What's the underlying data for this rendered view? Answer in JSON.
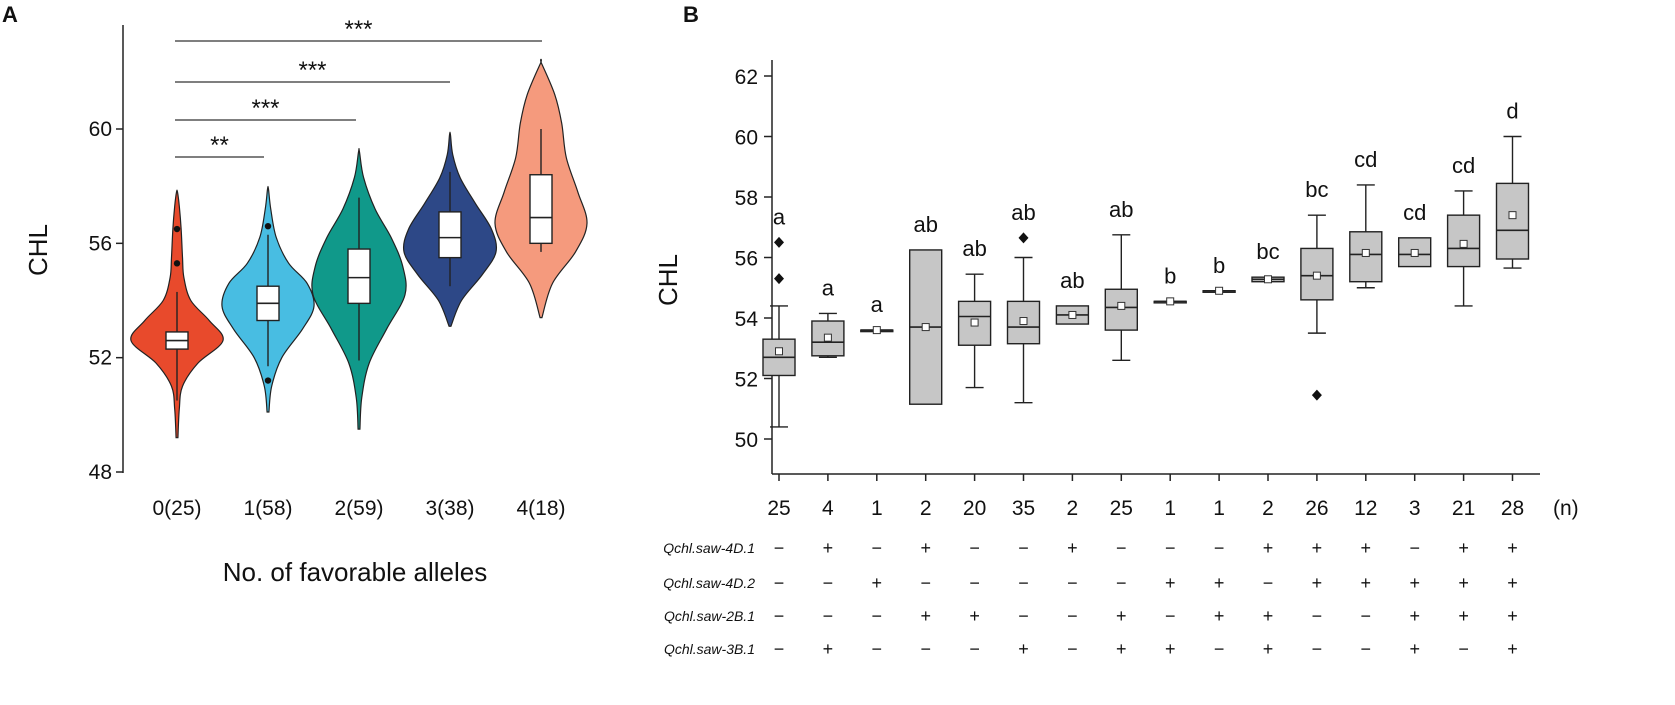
{
  "chart_data": [
    {
      "panel": "A",
      "type": "violin",
      "ylabel": "CHL",
      "xlabel": "No. of favorable alleles",
      "ylim": [
        47.5,
        64
      ],
      "yticks": [
        48,
        52,
        56,
        60
      ],
      "categories": [
        "0(25)",
        "1(58)",
        "2(59)",
        "3(38)",
        "4(18)"
      ],
      "colors": [
        "#e84a2c",
        "#48bde2",
        "#10998a",
        "#2d4887",
        "#f59a7d"
      ],
      "groups": [
        {
          "box": {
            "q1": 52.3,
            "median": 52.6,
            "q3": 52.9,
            "whisker_low": 50.5,
            "whisker_high": 54.3
          },
          "outliers": [
            55.3,
            56.5
          ],
          "violin": [
            [
              49.2,
              0.02
            ],
            [
              50.2,
              0.05
            ],
            [
              51.0,
              0.12
            ],
            [
              51.8,
              0.45
            ],
            [
              52.6,
              1.0
            ],
            [
              53.3,
              0.7
            ],
            [
              54.0,
              0.3
            ],
            [
              54.8,
              0.15
            ],
            [
              55.5,
              0.12
            ],
            [
              56.5,
              0.09
            ],
            [
              57.3,
              0.05
            ],
            [
              57.8,
              0.01
            ]
          ]
        },
        {
          "box": {
            "q1": 53.3,
            "median": 53.9,
            "q3": 54.5,
            "whisker_low": 51.7,
            "whisker_high": 56.3
          },
          "outliers": [
            51.2,
            56.6
          ],
          "violin": [
            [
              50.1,
              0.02
            ],
            [
              51.0,
              0.08
            ],
            [
              52.0,
              0.3
            ],
            [
              53.0,
              0.75
            ],
            [
              53.8,
              1.0
            ],
            [
              54.6,
              0.85
            ],
            [
              55.3,
              0.45
            ],
            [
              56.2,
              0.18
            ],
            [
              57.2,
              0.06
            ],
            [
              57.9,
              0.01
            ]
          ]
        },
        {
          "box": {
            "q1": 53.9,
            "median": 54.8,
            "q3": 55.8,
            "whisker_low": 51.9,
            "whisker_high": 57.6
          },
          "outliers": [],
          "violin": [
            [
              49.5,
              0.02
            ],
            [
              50.6,
              0.06
            ],
            [
              51.8,
              0.22
            ],
            [
              53.0,
              0.6
            ],
            [
              54.2,
              1.0
            ],
            [
              55.2,
              0.95
            ],
            [
              56.2,
              0.7
            ],
            [
              57.2,
              0.35
            ],
            [
              58.3,
              0.1
            ],
            [
              59.2,
              0.01
            ]
          ]
        },
        {
          "box": {
            "q1": 55.5,
            "median": 56.2,
            "q3": 57.1,
            "whisker_low": 54.5,
            "whisker_high": 58.5
          },
          "outliers": [],
          "violin": [
            [
              53.1,
              0.02
            ],
            [
              54.0,
              0.25
            ],
            [
              54.9,
              0.7
            ],
            [
              55.7,
              1.0
            ],
            [
              56.5,
              0.9
            ],
            [
              57.4,
              0.55
            ],
            [
              58.3,
              0.22
            ],
            [
              59.1,
              0.06
            ],
            [
              59.8,
              0.01
            ]
          ]
        },
        {
          "box": {
            "q1": 56.0,
            "median": 56.9,
            "q3": 58.4,
            "whisker_low": 55.7,
            "whisker_high": 60.0
          },
          "outliers": [],
          "violin": [
            [
              53.4,
              0.02
            ],
            [
              54.6,
              0.25
            ],
            [
              55.7,
              0.75
            ],
            [
              56.7,
              1.0
            ],
            [
              57.8,
              0.8
            ],
            [
              59.0,
              0.55
            ],
            [
              60.2,
              0.45
            ],
            [
              61.2,
              0.3
            ],
            [
              62.3,
              0.01
            ]
          ]
        }
      ],
      "significance": [
        {
          "from": 0,
          "to": 1,
          "label": "**"
        },
        {
          "from": 0,
          "to": 2,
          "label": "***"
        },
        {
          "from": 0,
          "to": 3,
          "label": "***"
        },
        {
          "from": 0,
          "to": 4,
          "label": "***"
        }
      ]
    },
    {
      "panel": "B",
      "type": "box",
      "ylabel": "CHL",
      "ylim": [
        49,
        62.3
      ],
      "yticks": [
        50,
        52,
        54,
        56,
        58,
        60,
        62
      ],
      "n_suffix": "(n)",
      "groups": [
        {
          "n": "25",
          "letter": "a",
          "q1": 52.1,
          "median": 52.7,
          "q3": 53.3,
          "whisker_low": 50.4,
          "whisker_high": 54.4,
          "mean": 52.9,
          "outliers": [
            55.3,
            56.5
          ]
        },
        {
          "n": "4",
          "letter": "a",
          "q1": 52.75,
          "median": 53.2,
          "q3": 53.9,
          "whisker_low": 52.7,
          "whisker_high": 54.15,
          "mean": 53.35,
          "outliers": []
        },
        {
          "n": "1",
          "letter": "a",
          "q1": 53.6,
          "median": 53.6,
          "q3": 53.6,
          "whisker_low": 53.6,
          "whisker_high": 53.6,
          "mean": 53.6,
          "outliers": []
        },
        {
          "n": "2",
          "letter": "ab",
          "q1": 51.15,
          "median": 53.7,
          "q3": 56.25,
          "whisker_low": 51.15,
          "whisker_high": 56.25,
          "mean": 53.7,
          "outliers": []
        },
        {
          "n": "20",
          "letter": "ab",
          "q1": 53.1,
          "median": 54.05,
          "q3": 54.55,
          "whisker_low": 51.7,
          "whisker_high": 55.45,
          "mean": 53.85,
          "outliers": []
        },
        {
          "n": "35",
          "letter": "ab",
          "q1": 53.15,
          "median": 53.7,
          "q3": 54.55,
          "whisker_low": 51.2,
          "whisker_high": 56.0,
          "mean": 53.9,
          "outliers": [
            56.65
          ]
        },
        {
          "n": "2",
          "letter": "ab",
          "q1": 53.8,
          "median": 54.1,
          "q3": 54.4,
          "whisker_low": 53.8,
          "whisker_high": 54.4,
          "mean": 54.1,
          "outliers": []
        },
        {
          "n": "25",
          "letter": "ab",
          "q1": 53.6,
          "median": 54.35,
          "q3": 54.95,
          "whisker_low": 52.6,
          "whisker_high": 56.75,
          "mean": 54.4,
          "outliers": []
        },
        {
          "n": "1",
          "letter": "b",
          "q1": 54.55,
          "median": 54.55,
          "q3": 54.55,
          "whisker_low": 54.55,
          "whisker_high": 54.55,
          "mean": 54.55,
          "outliers": []
        },
        {
          "n": "1",
          "letter": "b",
          "q1": 54.9,
          "median": 54.9,
          "q3": 54.9,
          "whisker_low": 54.9,
          "whisker_high": 54.9,
          "mean": 54.9,
          "outliers": []
        },
        {
          "n": "2",
          "letter": "bc",
          "q1": 55.2,
          "median": 55.28,
          "q3": 55.35,
          "whisker_low": 55.2,
          "whisker_high": 55.35,
          "mean": 55.28,
          "outliers": []
        },
        {
          "n": "26",
          "letter": "bc",
          "q1": 54.6,
          "median": 55.4,
          "q3": 56.3,
          "whisker_low": 53.5,
          "whisker_high": 57.4,
          "mean": 55.4,
          "outliers": [
            51.45
          ]
        },
        {
          "n": "12",
          "letter": "cd",
          "q1": 55.2,
          "median": 56.1,
          "q3": 56.85,
          "whisker_low": 55.0,
          "whisker_high": 58.4,
          "mean": 56.15,
          "outliers": []
        },
        {
          "n": "3",
          "letter": "cd",
          "q1": 55.7,
          "median": 56.1,
          "q3": 56.65,
          "whisker_low": 55.7,
          "whisker_high": 56.65,
          "mean": 56.15,
          "outliers": []
        },
        {
          "n": "21",
          "letter": "cd",
          "q1": 55.7,
          "median": 56.3,
          "q3": 57.4,
          "whisker_low": 54.4,
          "whisker_high": 58.2,
          "mean": 56.45,
          "outliers": []
        },
        {
          "n": "28",
          "letter": "d",
          "q1": 55.95,
          "median": 56.9,
          "q3": 58.45,
          "whisker_low": 55.65,
          "whisker_high": 60.0,
          "mean": 57.4,
          "outliers": []
        }
      ],
      "qtl_table": [
        {
          "name": "Qchl.saw-4D.1",
          "signs": [
            "−",
            "+",
            "−",
            "+",
            "−",
            "−",
            "+",
            "−",
            "−",
            "−",
            "+",
            "+",
            "+",
            "−",
            "+",
            "+"
          ]
        },
        {
          "name": "Qchl.saw-4D.2",
          "signs": [
            "−",
            "−",
            "+",
            "−",
            "−",
            "−",
            "−",
            "−",
            "+",
            "+",
            "−",
            "+",
            "+",
            "+",
            "+",
            "+"
          ]
        },
        {
          "name": "Qchl.saw-2B.1",
          "signs": [
            "−",
            "−",
            "−",
            "+",
            "+",
            "−",
            "−",
            "+",
            "−",
            "+",
            "+",
            "−",
            "−",
            "+",
            "+",
            "+"
          ]
        },
        {
          "name": "Qchl.saw-3B.1",
          "signs": [
            "−",
            "+",
            "−",
            "−",
            "−",
            "+",
            "−",
            "+",
            "+",
            "−",
            "+",
            "−",
            "−",
            "+",
            "−",
            "+"
          ]
        }
      ]
    }
  ],
  "labels": {
    "panel_a": "A",
    "panel_b": "B"
  }
}
